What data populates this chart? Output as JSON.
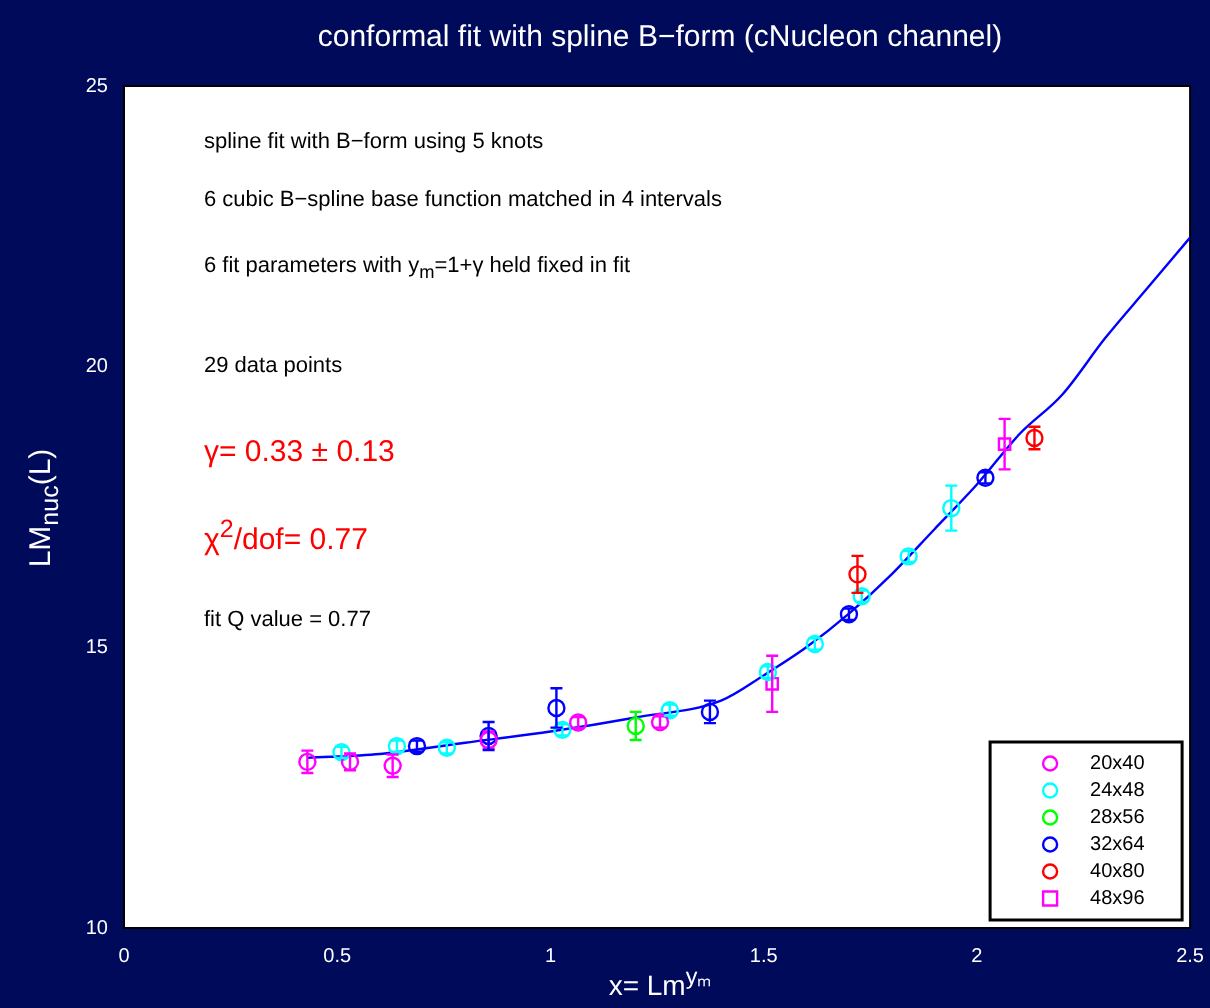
{
  "chart_data": {
    "type": "scatter",
    "title": "conformal fit with spline B−form  (cNucleon channel)",
    "xlabel": "x= Lm$^{yₘ}$",
    "ylabel": "LM$_{nuc}$(L)",
    "annotations": [
      "spline fit with B−form using 5 knots",
      "6 cubic B−spline base function matched in 4 intervals",
      "6 fit parameters with y$_{m}$=1+γ held fixed in fit",
      "29 data points",
      "γ= 0.33 ± 0.13",
      "χ$^{2}$/dof= 0.77",
      "fit Q value = 0.77"
    ],
    "xlim": [
      0,
      2.5
    ],
    "xticks": [
      0,
      0.5,
      1,
      1.5,
      2,
      2.5
    ],
    "ylim": [
      10,
      25
    ],
    "yticks": [
      10,
      15,
      20,
      25
    ],
    "grid": false,
    "legend": "bottom right",
    "marker": "circle",
    "series": [
      {
        "name": "20x40",
        "color": "#ff00ff",
        "x": [
          0.43,
          0.53,
          0.63,
          0.855,
          1.065,
          1.257
        ],
        "values": [
          12.96,
          12.96,
          12.89,
          13.35,
          13.66,
          13.67
        ],
        "errors": [
          0.2,
          0.15,
          0.2,
          0.15,
          0.1,
          0.1
        ]
      },
      {
        "name": "24x48",
        "color": "#00ffff",
        "x": [
          0.51,
          0.64,
          0.757,
          1.028,
          1.28,
          1.51,
          1.62,
          1.73,
          1.84,
          1.94
        ],
        "values": [
          13.13,
          13.24,
          13.21,
          13.53,
          13.88,
          14.56,
          15.06,
          15.91,
          16.62,
          17.48
        ],
        "errors": [
          0.1,
          0.1,
          0.1,
          0.1,
          0.1,
          0.1,
          0.1,
          0.1,
          0.1,
          0.4
        ]
      },
      {
        "name": "28x56",
        "color": "#00ff00",
        "x": [
          1.2
        ],
        "values": [
          13.6
        ],
        "errors": [
          0.25
        ]
      },
      {
        "name": "32x64",
        "color": "#0000ff",
        "x": [
          0.687,
          0.855,
          1.014,
          1.374,
          1.7,
          2.02
        ],
        "values": [
          13.24,
          13.42,
          13.92,
          13.85,
          15.59,
          18.02
        ],
        "errors": [
          0.1,
          0.25,
          0.35,
          0.2,
          0.1,
          0.1
        ]
      },
      {
        "name": "40x80",
        "color": "#ff0000",
        "x": [
          1.72,
          2.135
        ],
        "values": [
          16.3,
          18.73
        ],
        "errors": [
          0.33,
          0.2
        ]
      },
      {
        "name": "48x96",
        "color": "#ff00ff",
        "marker": "square",
        "x": [
          1.52,
          2.065
        ],
        "values": [
          14.35,
          18.62
        ],
        "errors": [
          0.5,
          0.45
        ]
      },
      {
        "type": "line",
        "color": "#0000ff",
        "marker": "none",
        "x": [
          0.43,
          0.6,
          0.8,
          1.0,
          1.2,
          1.4,
          1.5,
          1.6,
          1.7,
          1.8,
          1.9,
          2.0,
          2.1,
          2.2,
          2.3,
          2.4,
          2.5
        ],
        "values": [
          13.03,
          13.1,
          13.3,
          13.5,
          13.75,
          14.05,
          14.5,
          15.0,
          15.6,
          16.3,
          17.1,
          17.9,
          18.8,
          19.5,
          20.5,
          21.4,
          22.3
        ]
      }
    ]
  }
}
